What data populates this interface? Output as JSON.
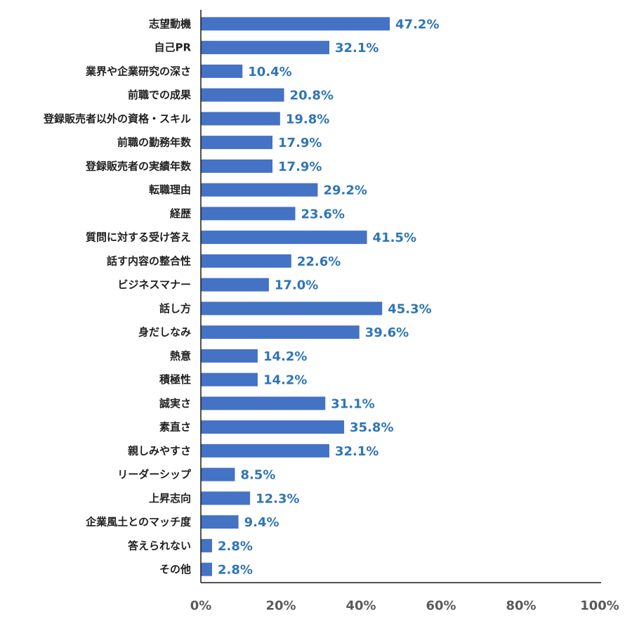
{
  "chart_data": {
    "type": "bar",
    "orientation": "horizontal",
    "categories": [
      "志望動機",
      "自己PR",
      "業界や企業研究の深さ",
      "前職での成果",
      "登録販売者以外の資格・スキル",
      "前職の勤務年数",
      "登録販売者の実績年数",
      "転職理由",
      "経歴",
      "質問に対する受け答え",
      "話す内容の整合性",
      "ビジネスマナー",
      "話し方",
      "身だしなみ",
      "熱意",
      "積極性",
      "誠実さ",
      "素直さ",
      "親しみやすさ",
      "リーダーシップ",
      "上昇志向",
      "企業風土とのマッチ度",
      "答えられない",
      "その他"
    ],
    "values": [
      47.2,
      32.1,
      10.4,
      20.8,
      19.8,
      17.9,
      17.9,
      29.2,
      23.6,
      41.5,
      22.6,
      17.0,
      45.3,
      39.6,
      14.2,
      14.2,
      31.1,
      35.8,
      32.1,
      8.5,
      12.3,
      9.4,
      2.8,
      2.8
    ],
    "value_labels": [
      "47.2%",
      "32.1%",
      "10.4%",
      "20.8%",
      "19.8%",
      "17.9%",
      "17.9%",
      "29.2%",
      "23.6%",
      "41.5%",
      "22.6%",
      "17.0%",
      "45.3%",
      "39.6%",
      "14.2%",
      "14.2%",
      "31.1%",
      "35.8%",
      "32.1%",
      "8.5%",
      "12.3%",
      "9.4%",
      "2.8%",
      "2.8%"
    ],
    "x_ticks": [
      "0%",
      "20%",
      "40%",
      "60%",
      "80%",
      "100%"
    ],
    "xlim": [
      0,
      100
    ],
    "grid": false,
    "legend": "none",
    "colors": {
      "bar": "#4472c4",
      "value_label": "#2e75b6",
      "category_label": "#1f1f1f",
      "tick_label": "#5a5a5a",
      "axis": "#1a1a1a"
    }
  }
}
